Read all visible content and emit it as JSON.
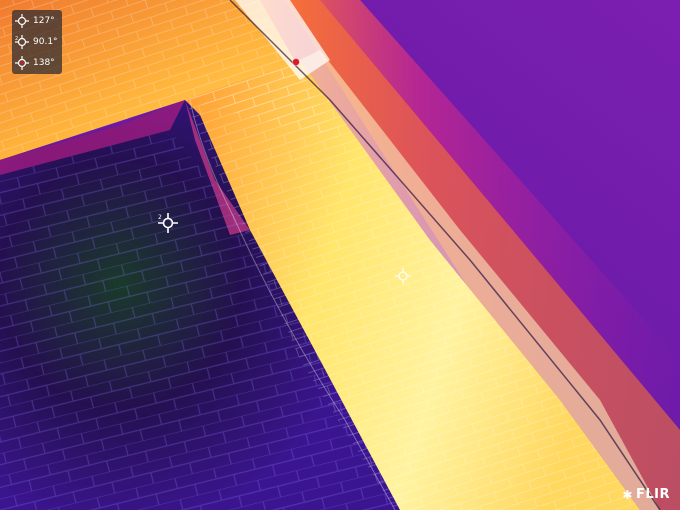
{
  "measurements": [
    {
      "index": "",
      "value": "127°",
      "icon": "crosshair-icon"
    },
    {
      "index": "2",
      "value": "90.1°",
      "icon": "crosshair-icon"
    },
    {
      "index": "",
      "value": "138°",
      "icon": "crosshair-red-icon"
    }
  ],
  "markers": {
    "spot2_index": "2"
  },
  "brand": {
    "name": "FLIR",
    "symbol": "✱"
  },
  "colors": {
    "cold": "#2a0f6e",
    "mid": "#c0208a",
    "warm": "#ff8a2a",
    "hot": "#fff6b0",
    "hotspot_marker": "#e0192a"
  }
}
